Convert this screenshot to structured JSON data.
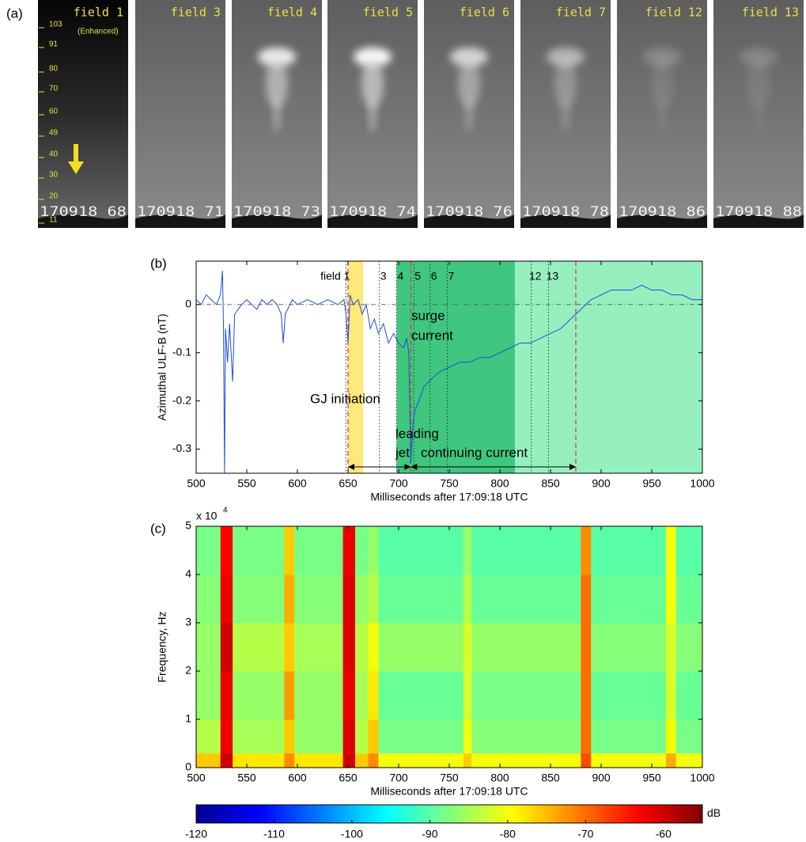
{
  "panel_a": {
    "label": "(a)",
    "enhanced": "(Enhanced)",
    "scale_labels": [
      "103",
      "91",
      "80",
      "70",
      "60",
      "49",
      "40",
      "30",
      "20",
      "11"
    ],
    "frames": [
      {
        "title": "field 1",
        "timestamp": "170918 68"
      },
      {
        "title": "field 3",
        "timestamp": "170918 71"
      },
      {
        "title": "field 4",
        "timestamp": "170918 73"
      },
      {
        "title": "field 5",
        "timestamp": "170918 74"
      },
      {
        "title": "field 6",
        "timestamp": "170918 76"
      },
      {
        "title": "field 7",
        "timestamp": "170918 78"
      },
      {
        "title": "field 12",
        "timestamp": "170918 86"
      },
      {
        "title": "field 13",
        "timestamp": "170918 88"
      }
    ]
  },
  "chart_data": [
    {
      "type": "line",
      "panel_label": "(b)",
      "xlabel": "Milliseconds after 17:09:18 UTC",
      "ylabel": "Azimuthal ULF-B (nT)",
      "xlim": [
        500,
        1000
      ],
      "xticks": [
        500,
        550,
        600,
        650,
        700,
        750,
        800,
        850,
        900,
        950,
        1000
      ],
      "ylim": [
        -0.35,
        0.09
      ],
      "yticks": [
        -0.3,
        -0.2,
        -0.1,
        0
      ],
      "color": "#1f4fd8",
      "x": [
        500,
        505,
        510,
        515,
        520,
        524,
        526,
        527,
        528,
        529,
        531,
        533,
        536,
        538,
        545,
        550,
        555,
        560,
        565,
        570,
        575,
        580,
        584,
        586,
        588,
        595,
        600,
        610,
        620,
        630,
        640,
        646,
        648,
        650,
        652,
        655,
        660,
        664,
        668,
        672,
        676,
        680,
        685,
        690,
        695,
        700,
        705,
        708,
        710,
        712,
        714,
        716,
        720,
        725,
        730,
        740,
        750,
        760,
        770,
        780,
        790,
        800,
        810,
        820,
        830,
        840,
        850,
        860,
        870,
        880,
        890,
        900,
        910,
        920,
        930,
        940,
        950,
        960,
        970,
        980,
        990,
        1000
      ],
      "values": [
        0.01,
        0.0,
        0.02,
        0.01,
        0.0,
        0.02,
        0.07,
        -0.05,
        -0.35,
        -0.05,
        -0.12,
        -0.04,
        -0.16,
        -0.02,
        0.0,
        0.01,
        0.0,
        -0.01,
        0.01,
        0.0,
        0.01,
        0.0,
        -0.02,
        -0.08,
        -0.02,
        0.01,
        0.0,
        0.01,
        0.0,
        0.01,
        0.0,
        0.01,
        -0.02,
        -0.08,
        0.02,
        0.0,
        0.01,
        -0.02,
        0.0,
        -0.05,
        -0.03,
        -0.06,
        -0.04,
        -0.08,
        -0.06,
        -0.08,
        -0.09,
        -0.07,
        -0.1,
        -0.33,
        -0.25,
        -0.22,
        -0.2,
        -0.17,
        -0.16,
        -0.14,
        -0.13,
        -0.12,
        -0.12,
        -0.11,
        -0.11,
        -0.1,
        -0.09,
        -0.08,
        -0.08,
        -0.07,
        -0.06,
        -0.05,
        -0.03,
        -0.01,
        0.01,
        0.02,
        0.03,
        0.03,
        0.03,
        0.04,
        0.03,
        0.03,
        0.02,
        0.02,
        0.01,
        0.01
      ],
      "spans": [
        {
          "x": [
            650,
            665
          ],
          "color": "#ffe97a"
        },
        {
          "x": [
            698,
            815
          ],
          "color": "#3fc77f"
        },
        {
          "x": [
            815,
            1000
          ],
          "color": "#96efbf"
        }
      ],
      "markers": [
        {
          "label": "field 1",
          "x": 648
        },
        {
          "label": "3",
          "x": 681
        },
        {
          "label": "4",
          "x": 698
        },
        {
          "label": "5",
          "x": 715
        },
        {
          "label": "6",
          "x": 731
        },
        {
          "label": "7",
          "x": 748
        },
        {
          "label": "12",
          "x": 831
        },
        {
          "label": "13",
          "x": 848
        }
      ],
      "event_lines": [
        650,
        712,
        875
      ],
      "annotations": [
        "GJ initiation",
        "surge",
        "current"
      ],
      "phases": [
        {
          "label": [
            "leading",
            "jet"
          ],
          "x": [
            650,
            712
          ]
        },
        {
          "label": [
            "continuing current"
          ],
          "x": [
            712,
            875
          ]
        }
      ]
    },
    {
      "type": "heatmap",
      "panel_label": "(c)",
      "xlabel": "Milliseconds after 17:09:18 UTC",
      "ylabel": "Frequency, Hz",
      "y_multiplier": "x 10",
      "y_exponent": "4",
      "xlim": [
        500,
        1000
      ],
      "xticks": [
        500,
        550,
        600,
        650,
        700,
        750,
        800,
        850,
        900,
        950,
        1000
      ],
      "ylim": [
        0,
        5
      ],
      "yticks": [
        0,
        1,
        2,
        3,
        4,
        5
      ],
      "colormap": "jet",
      "x_bins": [
        500,
        524,
        536,
        587,
        597,
        645,
        657,
        670,
        680,
        764,
        772,
        880,
        890,
        964,
        974,
        1000
      ],
      "y_bins": [
        0,
        0.3,
        1,
        2,
        3,
        4,
        5
      ],
      "z": [
        [
          -76,
          -60,
          -78,
          -72,
          -78,
          -60,
          -76,
          -72,
          -80,
          -76,
          -80,
          -68,
          -80,
          -74,
          -80
        ],
        [
          -84,
          -62,
          -85,
          -76,
          -86,
          -61,
          -84,
          -76,
          -88,
          -80,
          -87,
          -70,
          -88,
          -80,
          -88
        ],
        [
          -86,
          -62,
          -86,
          -73,
          -86,
          -62,
          -85,
          -78,
          -89,
          -82,
          -88,
          -70,
          -89,
          -82,
          -89
        ],
        [
          -86,
          -60,
          -84,
          -76,
          -85,
          -61,
          -84,
          -80,
          -86,
          -82,
          -86,
          -70,
          -87,
          -82,
          -87
        ],
        [
          -87,
          -62,
          -87,
          -74,
          -87,
          -61,
          -86,
          -84,
          -89,
          -84,
          -89,
          -70,
          -89,
          -80,
          -89
        ],
        [
          -88,
          -63,
          -88,
          -76,
          -88,
          -62,
          -88,
          -86,
          -90,
          -86,
          -90,
          -72,
          -90,
          -80,
          -90
        ]
      ],
      "clim": [
        -120,
        -55
      ],
      "colorbar_ticks": [
        -120,
        -110,
        -100,
        -90,
        -80,
        -70,
        -60
      ],
      "colorbar_label": "dB"
    }
  ]
}
